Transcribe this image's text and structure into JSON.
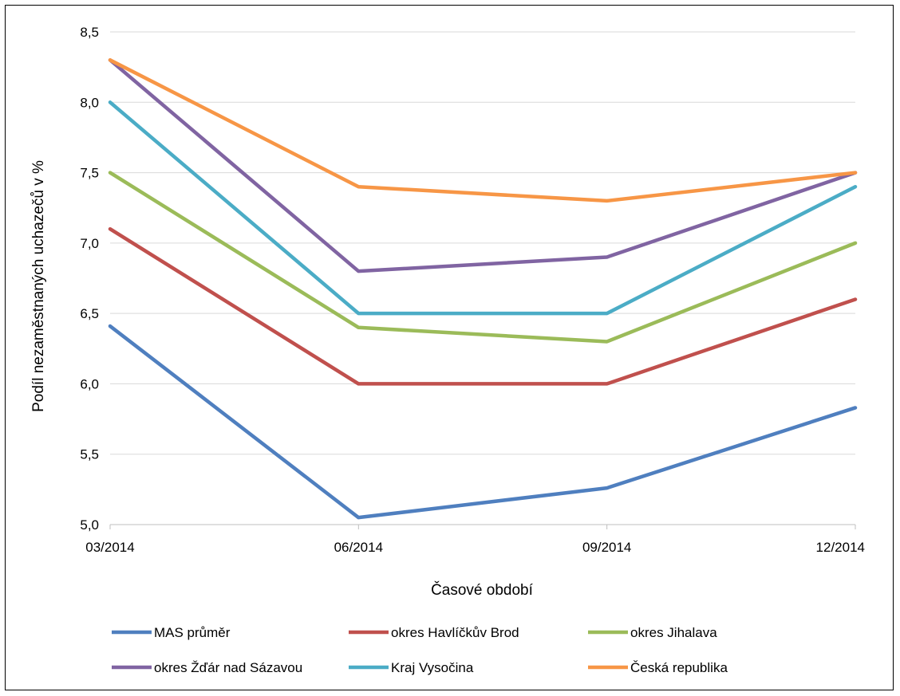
{
  "chart_data": {
    "type": "line",
    "xlabel": "Časové období",
    "ylabel": "Podíl nezaměstnaných uchazečů v %",
    "categories": [
      "03/2014",
      "06/2014",
      "09/2014",
      "12/2014"
    ],
    "ylim": [
      5.0,
      8.5
    ],
    "yticks": [
      "5,0",
      "5,5",
      "6,0",
      "6,5",
      "7,0",
      "7,5",
      "8,0",
      "8,5"
    ],
    "grid": true,
    "legend_position": "bottom",
    "series": [
      {
        "name": "MAS průměr",
        "color": "#4f7fbf",
        "values": [
          6.41,
          5.05,
          5.26,
          5.83
        ]
      },
      {
        "name": "okres Havlíčkův Brod",
        "color": "#c0504d",
        "values": [
          7.1,
          6.0,
          6.0,
          6.6
        ]
      },
      {
        "name": "okres Jihalava",
        "color": "#9bbb59",
        "values": [
          7.5,
          6.4,
          6.3,
          7.0
        ]
      },
      {
        "name": "okres Žďár nad Sázavou",
        "color": "#8064a2",
        "values": [
          8.3,
          6.8,
          6.9,
          7.5
        ]
      },
      {
        "name": "Kraj Vysočina",
        "color": "#4bacc6",
        "values": [
          8.0,
          6.5,
          6.5,
          7.4
        ]
      },
      {
        "name": "Česká republika",
        "color": "#f79646",
        "values": [
          8.3,
          7.4,
          7.3,
          7.5
        ]
      }
    ]
  }
}
